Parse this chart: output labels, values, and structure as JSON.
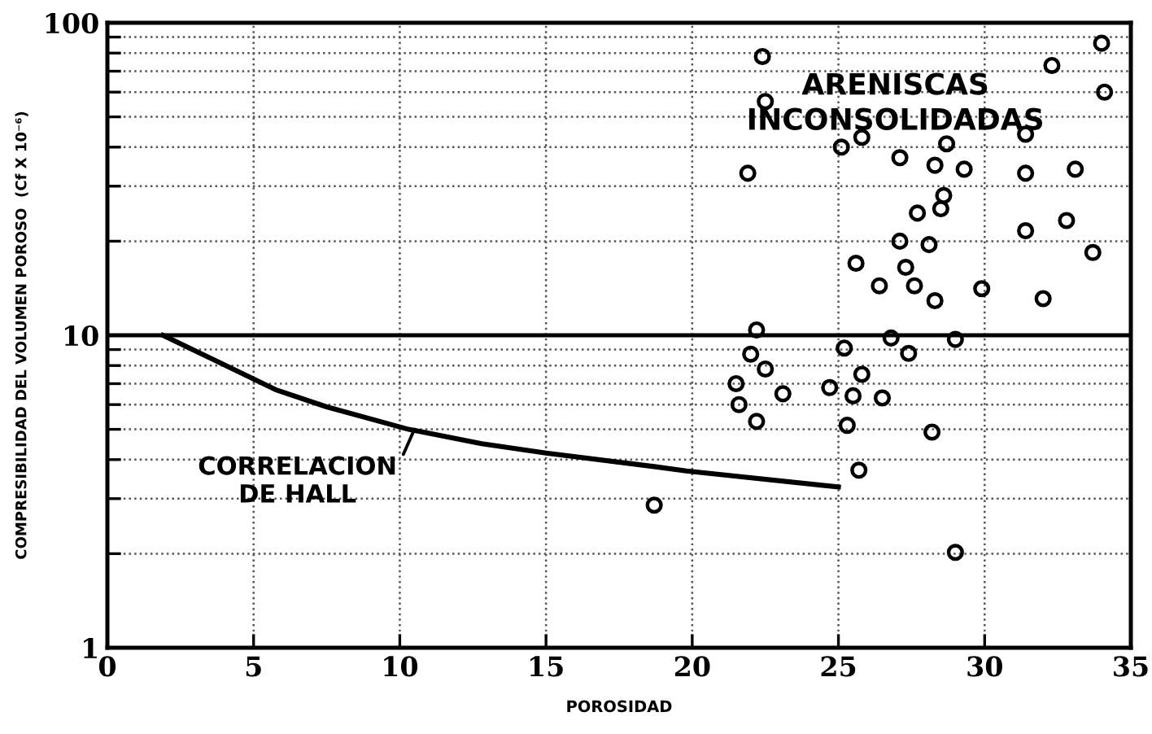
{
  "chart_data": {
    "type": "scatter",
    "xlabel": "POROSIDAD",
    "ylabel": "COMPRESIBILIDAD DEL VOLUMEN POROSO  (Cf X 10⁻⁶)",
    "log": "y",
    "grid": true,
    "marker": "circle",
    "xlim": [
      0,
      35
    ],
    "xticks": [
      0,
      5,
      10,
      15,
      20,
      25,
      30,
      35
    ],
    "ylim": [
      1,
      100
    ],
    "yticks": [
      1,
      {
        "value": 2,
        "label": null
      },
      {
        "value": 3,
        "label": null
      },
      {
        "value": 4,
        "label": null
      },
      {
        "value": 5,
        "label": null
      },
      {
        "value": 6,
        "label": null
      },
      {
        "value": 7,
        "label": null
      },
      {
        "value": 8,
        "label": null
      },
      {
        "value": 9,
        "label": null
      },
      10,
      {
        "value": 20,
        "label": null
      },
      {
        "value": 30,
        "label": null
      },
      {
        "value": 40,
        "label": null
      },
      {
        "value": 50,
        "label": null
      },
      {
        "value": 60,
        "label": null
      },
      {
        "value": 70,
        "label": null
      },
      {
        "value": 80,
        "label": null
      },
      {
        "value": 90,
        "label": null
      },
      100
    ],
    "ref_lines": [
      {
        "axis": "y",
        "value": 10,
        "color": "#000000",
        "line_style": "solid"
      }
    ],
    "series": [
      {
        "color": "#000000",
        "x": [
          22.4,
          34.0,
          32.3,
          34.1,
          22.5,
          31.4,
          25.8,
          25.1,
          28.7,
          27.1,
          21.9,
          28.3,
          29.3,
          31.4,
          33.1,
          28.6,
          28.5,
          27.7,
          32.8,
          31.4,
          27.1,
          28.1,
          33.7,
          25.6,
          27.3,
          26.4,
          27.6,
          29.9,
          28.3,
          32.0,
          22.2,
          26.8,
          29.0,
          22.0,
          25.2,
          27.4,
          22.5,
          25.8,
          21.5,
          24.7,
          23.1,
          25.5,
          26.5,
          21.6,
          22.2,
          25.3,
          28.2,
          25.7,
          18.7,
          29.0
        ],
        "values": [
          78,
          86,
          73,
          60,
          56,
          44,
          43,
          40,
          41,
          37,
          33,
          35,
          34,
          33,
          34,
          28,
          25.4,
          24.6,
          23.3,
          21.6,
          20,
          19.5,
          18.4,
          17,
          16.5,
          14.4,
          14.4,
          14.1,
          12.9,
          13.1,
          10.4,
          9.8,
          9.7,
          8.7,
          9.1,
          8.75,
          7.8,
          7.5,
          7.0,
          6.8,
          6.5,
          6.4,
          6.3,
          6.0,
          5.3,
          5.15,
          4.9,
          3.7,
          2.86,
          2.02
        ]
      },
      {
        "type": "line",
        "color": "#000000",
        "marker": "none",
        "line_style": "solid",
        "x": [
          1.9,
          5.75,
          7.5,
          10.3,
          12.8,
          15.0,
          18.7,
          19.8,
          25.0
        ],
        "values": [
          10,
          6.7,
          5.9,
          5.0,
          4.5,
          4.2,
          3.8,
          3.68,
          3.27
        ]
      }
    ],
    "annotations": [
      "ARENISCAS\nINCONSOLIDADAS",
      {
        "text": "CORRELACION\nDE HALL",
        "x": 10.5,
        "y": 5.0
      }
    ]
  }
}
